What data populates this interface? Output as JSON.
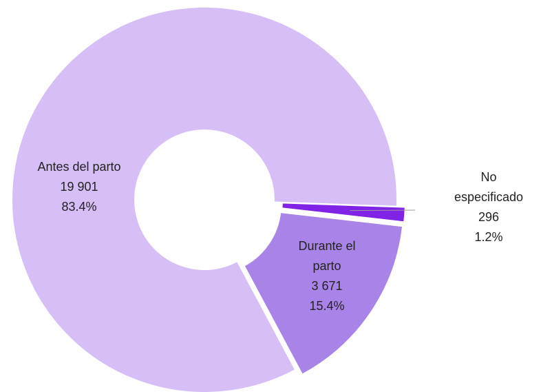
{
  "chart_data": {
    "type": "donut",
    "categories": [
      "Antes del parto",
      "Durante el parto",
      "No especificado"
    ],
    "values": [
      19901,
      3671,
      296
    ],
    "value_labels": [
      "19 901",
      "3 671",
      "296"
    ],
    "percent_labels": [
      "83.4%",
      "15.4%",
      "1.2%"
    ],
    "colors": [
      "#d5bff6",
      "#a984e8",
      "#8123e6"
    ]
  }
}
